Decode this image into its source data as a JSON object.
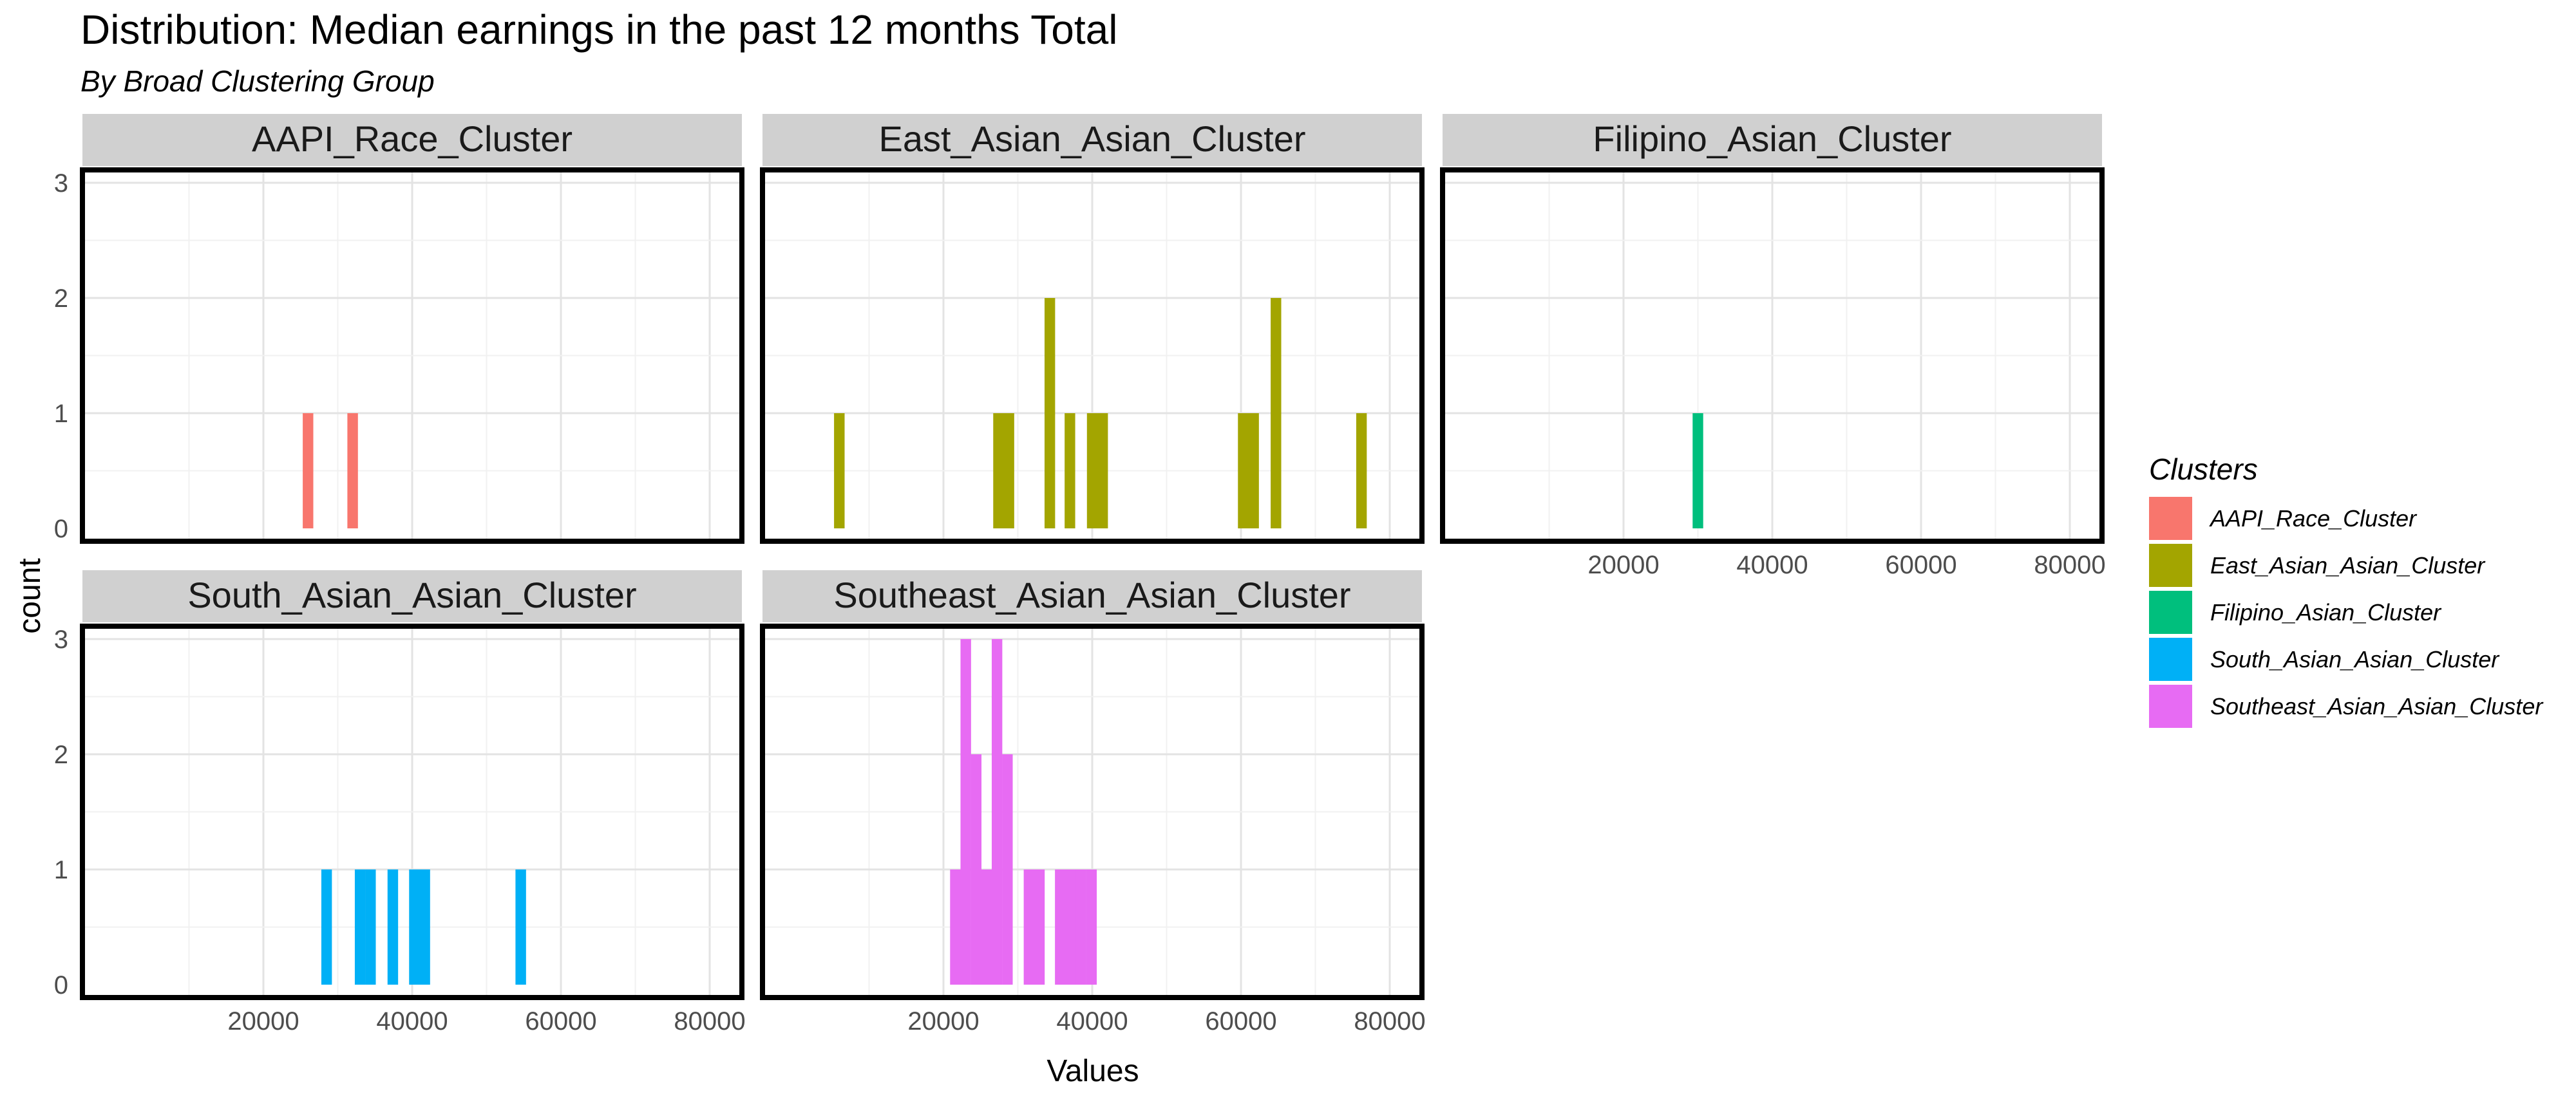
{
  "chart_data": {
    "type": "histogram",
    "title": "Distribution: Median earnings in the past 12 months Total",
    "subtitle": "By Broad Clustering Group",
    "xlabel": "Values",
    "ylabel": "count",
    "xlim": [
      0,
      80000
    ],
    "ylim": [
      0,
      3
    ],
    "x_ticks": [
      20000,
      40000,
      60000,
      80000
    ],
    "y_ticks": [
      0,
      1,
      2,
      3
    ],
    "bin_width": 1420,
    "grid": true,
    "facet_layout": "wrap 3 columns",
    "legend": {
      "title": "Clusters",
      "position": "right"
    },
    "series": [
      {
        "name": "AAPI_Race_Cluster",
        "color": "#F8766D",
        "bins": [
          {
            "x": 26000,
            "count": 1
          },
          {
            "x": 32000,
            "count": 1
          }
        ]
      },
      {
        "name": "East_Asian_Asian_Cluster",
        "color": "#A3A500",
        "bins": [
          {
            "x": 6000,
            "count": 1
          },
          {
            "x": 27400,
            "count": 1
          },
          {
            "x": 28800,
            "count": 1
          },
          {
            "x": 34300,
            "count": 2
          },
          {
            "x": 37000,
            "count": 1
          },
          {
            "x": 40000,
            "count": 1
          },
          {
            "x": 41400,
            "count": 1
          },
          {
            "x": 60300,
            "count": 1
          },
          {
            "x": 61700,
            "count": 1
          },
          {
            "x": 64700,
            "count": 2
          },
          {
            "x": 76200,
            "count": 1
          }
        ]
      },
      {
        "name": "Filipino_Asian_Cluster",
        "color": "#00BF7D",
        "bins": [
          {
            "x": 30000,
            "count": 1
          }
        ]
      },
      {
        "name": "South_Asian_Asian_Cluster",
        "color": "#00B0F6",
        "bins": [
          {
            "x": 28500,
            "count": 1
          },
          {
            "x": 33000,
            "count": 1
          },
          {
            "x": 34400,
            "count": 1
          },
          {
            "x": 37400,
            "count": 1
          },
          {
            "x": 40300,
            "count": 1
          },
          {
            "x": 41700,
            "count": 1
          },
          {
            "x": 54600,
            "count": 1
          }
        ]
      },
      {
        "name": "Southeast_Asian_Asian_Cluster",
        "color": "#E76BF3",
        "bins": [
          {
            "x": 21600,
            "count": 1
          },
          {
            "x": 23000,
            "count": 3
          },
          {
            "x": 24400,
            "count": 2
          },
          {
            "x": 25800,
            "count": 1
          },
          {
            "x": 27200,
            "count": 3
          },
          {
            "x": 28600,
            "count": 2
          },
          {
            "x": 31500,
            "count": 1
          },
          {
            "x": 32900,
            "count": 1
          },
          {
            "x": 35700,
            "count": 1
          },
          {
            "x": 37100,
            "count": 1
          },
          {
            "x": 38500,
            "count": 1
          },
          {
            "x": 39900,
            "count": 1
          }
        ]
      }
    ]
  }
}
